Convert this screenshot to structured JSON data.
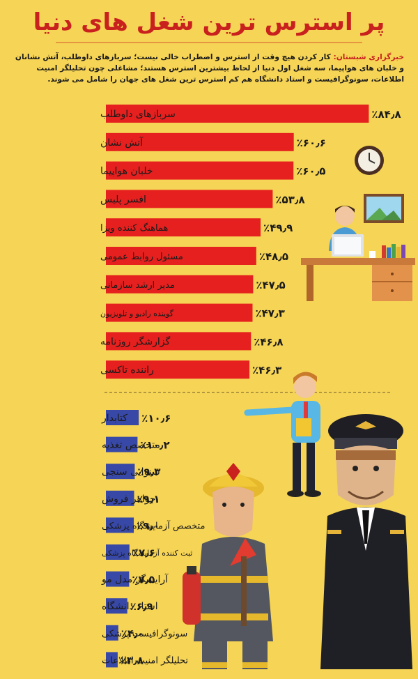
{
  "page": {
    "title": "پر استرس ترین شغل های دنیا",
    "intro_agency": "خبرگزاری شبستان:",
    "intro_text": " کار کردن هیچ وقت از استرس و اضطراب خالی نیست؛ سربازهای داوطلب، آتش نشانان و خلبان های هواپیما، سه شغل اول دنیا از لحاظ بیشترین استرس هستند؛ مشاغلی چون تحلیلگر امنیت اطلاعات، سونوگرافیست و استاد دانشگاه هم کم استرس ترین شغل های جهان را شامل می شوند."
  },
  "colors": {
    "background": "#f6d455",
    "title": "#c8211e",
    "high_bar": "#e5201e",
    "low_bar": "#3848a6"
  },
  "chart_data": [
    {
      "type": "bar",
      "orientation": "horizontal",
      "group": "most_stressful",
      "categories": [
        "سربازهای داوطلب",
        "آتش نشان",
        "خلبان هواپیما",
        "افسر پلیس",
        "هماهنگ کننده ویزا",
        "مسئول روابط عمومی",
        "مدیر ارشد سازمانی",
        "گوینده رادیو و تلویزیون",
        "گزارشگر روزنامه",
        "راننده تاکسی"
      ],
      "values": [
        84.8,
        60.6,
        60.5,
        53.8,
        49.9,
        48.5,
        47.5,
        47.3,
        46.8,
        46.3
      ],
      "value_labels": [
        "٪۸۴٫۸",
        "٪۶۰٫۶",
        "٪۶۰٫۵",
        "٪۵۳٫۸",
        "٪۴۹٫۹",
        "٪۴۸٫۵",
        "٪۴۷٫۵",
        "٪۴۷٫۳",
        "٪۴۶٫۸",
        "٪۴۶٫۳"
      ],
      "xlim": [
        0,
        100
      ]
    },
    {
      "type": "bar",
      "orientation": "horizontal",
      "group": "least_stressful",
      "categories": [
        "کتابدار",
        "متخصص تغذیه",
        "شنوایی سنجی",
        "جواهر فروش",
        "متخصص آزمایشگاه پزشکی",
        "ثبت کننده آزمایشگاه پزشکی",
        "آرایشگر مدل مو",
        "استاد دانشگاه",
        "سونوگرافیست پزشکی",
        "تحلیلگر امنیت اطلاعات"
      ],
      "values": [
        10.6,
        10.2,
        9.3,
        9.1,
        9.0,
        7.6,
        7.5,
        6.9,
        4.0,
        3.8
      ],
      "value_labels": [
        "٪۱۰٫۶",
        "٪۱۰٫۲",
        "٪۹٫۳",
        "٪۹٫۱",
        "٪۹٫۰",
        "٪۷٫۶",
        "٪۷٫۵",
        "٪۶٫۹",
        "٪۴٫۰",
        "٪۳٫۸"
      ],
      "xlim": [
        0,
        100
      ]
    }
  ]
}
